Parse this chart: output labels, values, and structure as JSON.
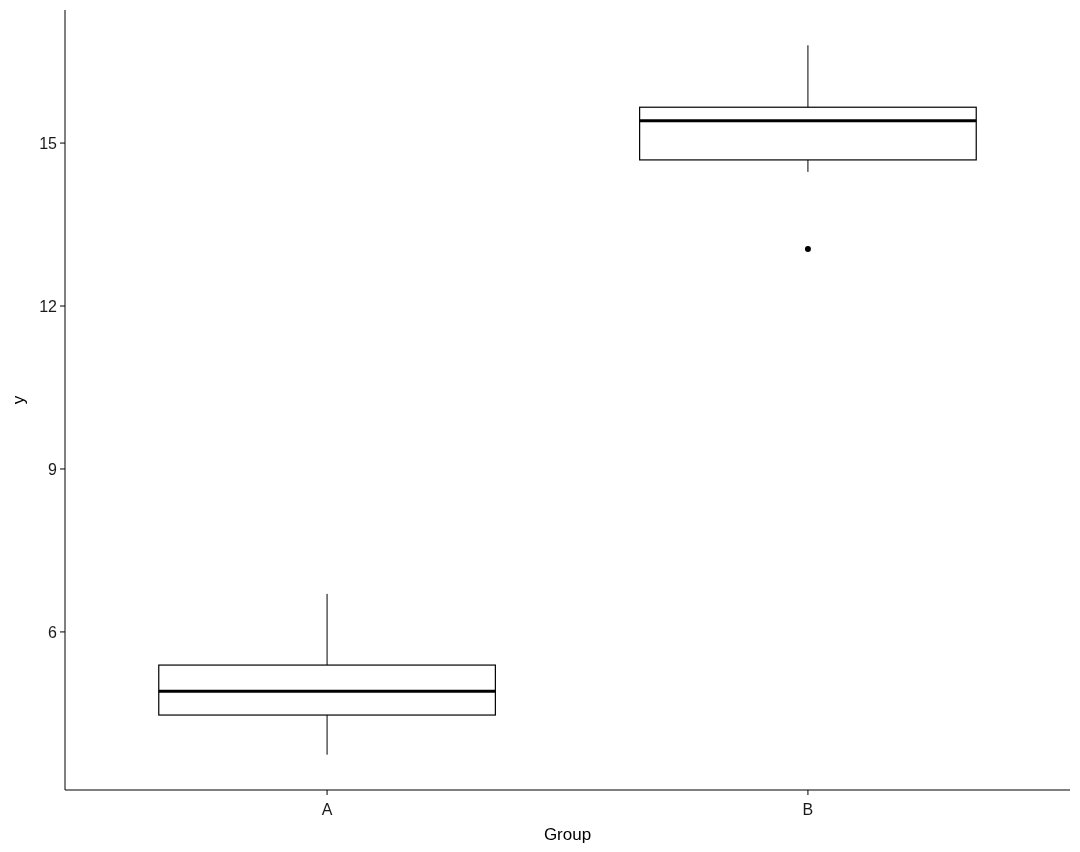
{
  "chart_data": {
    "type": "box",
    "xlabel": "Group",
    "ylabel": "y",
    "categories": [
      "A",
      "B"
    ],
    "boxes": [
      {
        "low": 3.74,
        "q1": 4.47,
        "median": 4.91,
        "q3": 5.39,
        "high": 6.7
      },
      {
        "low": 14.47,
        "q1": 14.69,
        "median": 15.41,
        "q3": 15.66,
        "high": 16.8,
        "outliers": [
          13.05
        ]
      }
    ],
    "ylim": [
      3.09,
      17.45
    ],
    "yticks": [
      6,
      9,
      12,
      15
    ],
    "grid": false
  }
}
